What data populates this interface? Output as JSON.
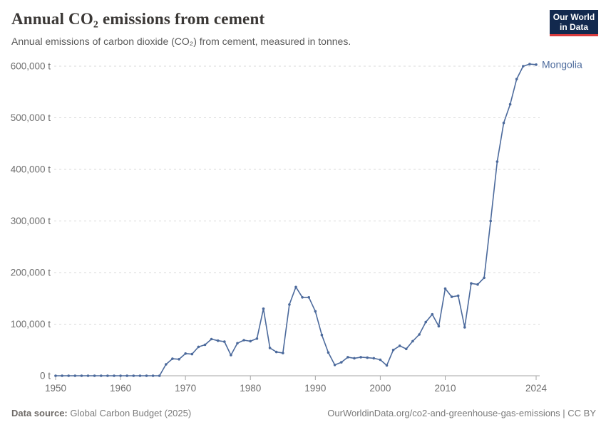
{
  "header": {
    "title": "Annual CO₂ emissions from cement",
    "subtitle": "Annual emissions of carbon dioxide (CO₂) from cement, measured in tonnes.",
    "logo": {
      "line1": "Our World",
      "line2": "in Data"
    }
  },
  "chart_data": {
    "type": "line",
    "title": "Annual CO₂ emissions from cement",
    "unit": "tonnes",
    "entity_label": "Mongolia",
    "xlabel": "",
    "ylabel": "",
    "xlim": [
      1950,
      2024
    ],
    "ylim": [
      0,
      600000
    ],
    "grid": "horizontal-dashed",
    "legend_position": "end-of-line-label",
    "xticks": [
      {
        "value": 1950,
        "label": "1950"
      },
      {
        "value": 1960,
        "label": "1960"
      },
      {
        "value": 1970,
        "label": "1970"
      },
      {
        "value": 1980,
        "label": "1980"
      },
      {
        "value": 1990,
        "label": "1990"
      },
      {
        "value": 2000,
        "label": "2000"
      },
      {
        "value": 2010,
        "label": "2010"
      },
      {
        "value": 2024,
        "label": "2024"
      }
    ],
    "yticks": [
      {
        "value": 0,
        "label": "0 t"
      },
      {
        "value": 100000,
        "label": "100,000 t"
      },
      {
        "value": 200000,
        "label": "200,000 t"
      },
      {
        "value": 300000,
        "label": "300,000 t"
      },
      {
        "value": 400000,
        "label": "400,000 t"
      },
      {
        "value": 500000,
        "label": "500,000 t"
      },
      {
        "value": 600000,
        "label": "600,000 t"
      }
    ],
    "series": [
      {
        "name": "Mongolia",
        "color": "#4C6A9C",
        "years": [
          1950,
          1951,
          1952,
          1953,
          1954,
          1955,
          1956,
          1957,
          1958,
          1959,
          1960,
          1961,
          1962,
          1963,
          1964,
          1965,
          1966,
          1967,
          1968,
          1969,
          1970,
          1971,
          1972,
          1973,
          1974,
          1975,
          1976,
          1977,
          1978,
          1979,
          1980,
          1981,
          1982,
          1983,
          1984,
          1985,
          1986,
          1987,
          1988,
          1989,
          1990,
          1991,
          1992,
          1993,
          1994,
          1995,
          1996,
          1997,
          1998,
          1999,
          2000,
          2001,
          2002,
          2003,
          2004,
          2005,
          2006,
          2007,
          2008,
          2009,
          2010,
          2011,
          2012,
          2013,
          2014,
          2015,
          2016,
          2017,
          2018,
          2019,
          2020,
          2021,
          2022,
          2023,
          2024
        ],
        "values": [
          0,
          0,
          0,
          0,
          0,
          0,
          0,
          0,
          0,
          0,
          0,
          0,
          0,
          0,
          0,
          0,
          0,
          22000,
          33000,
          32000,
          43000,
          42000,
          56000,
          60000,
          71000,
          68000,
          66000,
          40000,
          63000,
          69000,
          67000,
          72000,
          130000,
          54000,
          46000,
          44000,
          138000,
          172000,
          152000,
          152000,
          125000,
          79000,
          45000,
          21000,
          26000,
          36000,
          34000,
          36000,
          35000,
          34000,
          31000,
          20000,
          50000,
          58000,
          52000,
          67000,
          80000,
          104000,
          119000,
          96000,
          169000,
          153000,
          155000,
          94000,
          179000,
          177000,
          190000,
          300000,
          415000,
          490000,
          526000,
          575000,
          600000,
          604000,
          603000
        ]
      }
    ]
  },
  "footer": {
    "source_label": "Data source:",
    "source": " Global Carbon Budget (2025)",
    "link": "OurWorldinData.org/co2-and-greenhouse-gas-emissions | CC BY"
  },
  "colors": {
    "line": "#4C6A9C",
    "grid": "#d9d9d9",
    "axis": "#a5a5a5",
    "tick": "#a5a5a5",
    "tick_label": "#6e6e6e",
    "entity_label": "#4C6A9C",
    "logo_bg": "#12294e",
    "logo_red": "#d93a3c"
  }
}
